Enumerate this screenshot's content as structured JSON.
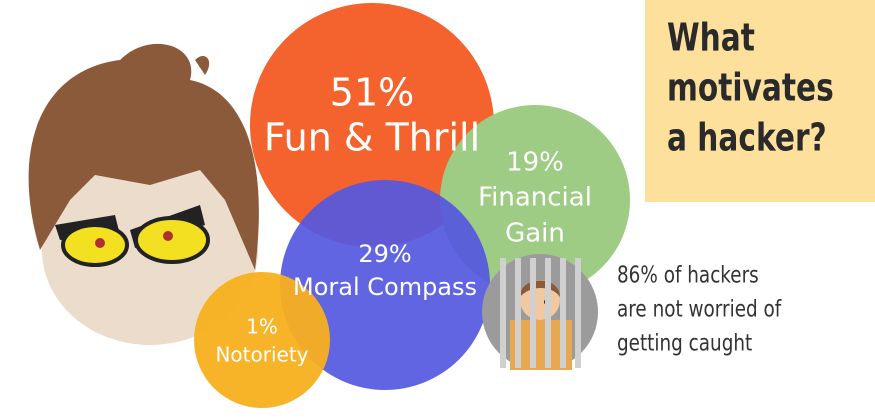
{
  "title_lines": [
    "What",
    "motivates",
    "a hacker?"
  ],
  "bubbles": [
    {
      "percent": "51%",
      "label_lines": [
        "Fun & Thrill"
      ]
    },
    {
      "percent": "19%",
      "label_lines": [
        "Financial",
        "Gain"
      ]
    },
    {
      "percent": "29%",
      "label_lines": [
        "Moral Compass"
      ]
    },
    {
      "percent": "1%",
      "label_lines": [
        "Notoriety"
      ]
    }
  ],
  "note_lines": [
    "86% of hackers",
    "are not worried of",
    "getting caught"
  ]
}
